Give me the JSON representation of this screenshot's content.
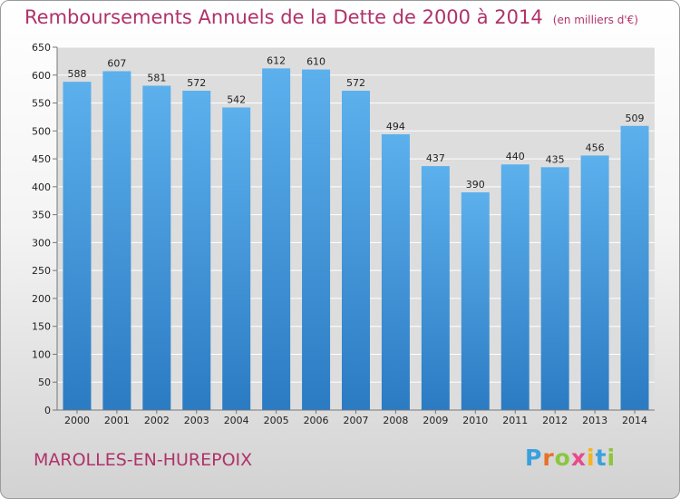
{
  "title": "Remboursements Annuels de la Dette de 2000 à 2014",
  "unit": "(en milliers d'€)",
  "commune": "MAROLLES-EN-HUREPOIX",
  "logo": {
    "letters": [
      "P",
      "r",
      "o",
      "x",
      "i",
      "t",
      "i"
    ],
    "colors": [
      "#3aa0de",
      "#e8702a",
      "#8cc63f",
      "#e84a8a",
      "#f2b51e",
      "#3aa0de",
      "#8cc63f"
    ]
  },
  "chart_data": {
    "type": "bar",
    "categories": [
      "2000",
      "2001",
      "2002",
      "2003",
      "2004",
      "2005",
      "2006",
      "2007",
      "2008",
      "2009",
      "2010",
      "2011",
      "2012",
      "2013",
      "2014"
    ],
    "values": [
      588,
      607,
      581,
      572,
      542,
      612,
      610,
      572,
      494,
      437,
      390,
      440,
      435,
      456,
      509
    ],
    "data_labels": [
      "588",
      "607",
      "581",
      "572",
      "542",
      "612",
      "610",
      "572",
      "494",
      "437",
      "390",
      "440",
      "435",
      "456",
      "509"
    ],
    "ylim": [
      0,
      650
    ],
    "yticks": [
      "0",
      "50",
      "100",
      "150",
      "200",
      "250",
      "300",
      "350",
      "400",
      "450",
      "500",
      "550",
      "600",
      "650"
    ],
    "grid": true,
    "bar_color_top": "#5cb0ec",
    "bar_color_bottom": "#2b7bc3"
  }
}
